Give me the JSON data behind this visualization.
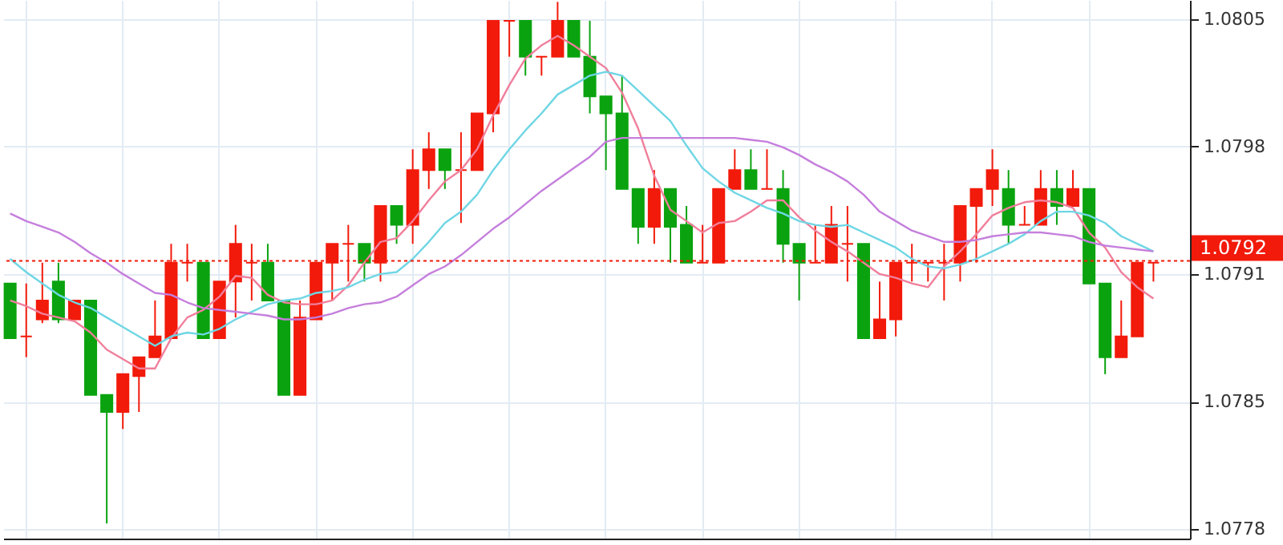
{
  "chart_data": {
    "type": "candlestick",
    "categories": [
      null,
      null,
      null,
      null,
      null,
      null,
      null,
      null,
      null,
      null,
      null,
      null,
      null,
      null,
      null,
      null,
      null,
      null,
      null,
      null,
      null,
      null,
      null,
      null,
      null,
      null,
      null,
      null,
      null,
      null,
      null,
      null,
      null,
      null,
      null,
      null,
      null,
      null,
      null,
      null,
      null,
      null,
      null,
      null,
      null,
      null,
      null,
      null,
      null,
      null,
      null,
      null,
      null,
      null,
      null,
      null,
      null,
      null,
      null,
      null,
      null,
      null,
      null,
      null,
      null,
      null,
      null,
      null,
      null,
      null,
      null,
      null
    ],
    "ohlc": [
      [
        1.07908,
        1.07908,
        1.07879,
        1.07879
      ],
      [
        1.0788,
        1.07908,
        1.07869,
        1.0788
      ],
      [
        1.07889,
        1.07919,
        1.07887,
        1.07899
      ],
      [
        1.07909,
        1.07919,
        1.07887,
        1.07889
      ],
      [
        1.07889,
        1.07899,
        1.07889,
        1.07899
      ],
      [
        1.07899,
        1.07899,
        1.07849,
        1.07849
      ],
      [
        1.07849,
        1.07849,
        1.07781,
        1.0784
      ],
      [
        1.0784,
        1.0786,
        1.07831,
        1.0786
      ],
      [
        1.07859,
        1.07869,
        1.0784,
        1.07869
      ],
      [
        1.07869,
        1.07899,
        1.07869,
        1.0788
      ],
      [
        1.07879,
        1.07929,
        1.07879,
        1.07919
      ],
      [
        1.07919,
        1.07929,
        1.07909,
        1.07919
      ],
      [
        1.07919,
        1.07919,
        1.07879,
        1.07879
      ],
      [
        1.07879,
        1.07909,
        1.07879,
        1.07909
      ],
      [
        1.07909,
        1.07939,
        1.0789,
        1.07929
      ],
      [
        1.07919,
        1.07929,
        1.07899,
        1.07919
      ],
      [
        1.07919,
        1.07929,
        1.07899,
        1.07899
      ],
      [
        1.07899,
        1.07899,
        1.07849,
        1.07849
      ],
      [
        1.07849,
        1.07899,
        1.07849,
        1.0789
      ],
      [
        1.07889,
        1.07919,
        1.07889,
        1.07919
      ],
      [
        1.07919,
        1.07929,
        1.07899,
        1.07929
      ],
      [
        1.07929,
        1.07939,
        1.07909,
        1.07929
      ],
      [
        1.07929,
        1.07929,
        1.07909,
        1.07919
      ],
      [
        1.07919,
        1.07949,
        1.07909,
        1.07949
      ],
      [
        1.07949,
        1.07949,
        1.07929,
        1.07939
      ],
      [
        1.07939,
        1.07979,
        1.07929,
        1.07968
      ],
      [
        1.07968,
        1.07988,
        1.07958,
        1.07979
      ],
      [
        1.07979,
        1.07979,
        1.07958,
        1.07968
      ],
      [
        1.07968,
        1.07988,
        1.0794,
        1.07968
      ],
      [
        1.07968,
        1.07998,
        1.07968,
        1.07998
      ],
      [
        1.07998,
        1.08047,
        1.07988,
        1.08047
      ],
      [
        1.08047,
        1.08047,
        1.08028,
        1.08047
      ],
      [
        1.08047,
        1.08047,
        1.08018,
        1.08028
      ],
      [
        1.08028,
        1.08028,
        1.08018,
        1.08028
      ],
      [
        1.08028,
        1.08057,
        1.08028,
        1.08047
      ],
      [
        1.08047,
        1.08047,
        1.08028,
        1.08028
      ],
      [
        1.08028,
        1.08047,
        1.07998,
        1.08007
      ],
      [
        1.08007,
        1.08007,
        1.07968,
        1.07998
      ],
      [
        1.07998,
        1.08018,
        1.07958,
        1.07958
      ],
      [
        1.07958,
        1.07958,
        1.07929,
        1.07938
      ],
      [
        1.07938,
        1.07968,
        1.07929,
        1.07958
      ],
      [
        1.07958,
        1.07958,
        1.07919,
        1.07938
      ],
      [
        1.07939,
        1.07949,
        1.07919,
        1.07919
      ],
      [
        1.07919,
        1.07939,
        1.07919,
        1.07919
      ],
      [
        1.07919,
        1.07958,
        1.07919,
        1.07958
      ],
      [
        1.07958,
        1.07979,
        1.07958,
        1.07968
      ],
      [
        1.07968,
        1.07979,
        1.07958,
        1.07958
      ],
      [
        1.07958,
        1.07979,
        1.07958,
        1.07958
      ],
      [
        1.07958,
        1.07968,
        1.07919,
        1.07929
      ],
      [
        1.07929,
        1.07929,
        1.07899,
        1.07919
      ],
      [
        1.07919,
        1.07939,
        1.07919,
        1.07919
      ],
      [
        1.07919,
        1.07949,
        1.07919,
        1.07939
      ],
      [
        1.07929,
        1.07949,
        1.07909,
        1.07929
      ],
      [
        1.07929,
        1.07929,
        1.07879,
        1.07879
      ],
      [
        1.07879,
        1.07909,
        1.07879,
        1.07889
      ],
      [
        1.07889,
        1.07919,
        1.0788,
        1.07919
      ],
      [
        1.07919,
        1.07929,
        1.07909,
        1.07919
      ],
      [
        1.07919,
        1.07919,
        1.07909,
        1.07919
      ],
      [
        1.07919,
        1.07929,
        1.07899,
        1.07919
      ],
      [
        1.07919,
        1.07949,
        1.07909,
        1.07949
      ],
      [
        1.07949,
        1.07958,
        1.07919,
        1.07958
      ],
      [
        1.07958,
        1.07979,
        1.07949,
        1.07968
      ],
      [
        1.07958,
        1.07968,
        1.07929,
        1.07939
      ],
      [
        1.07939,
        1.07949,
        1.07939,
        1.07939
      ],
      [
        1.07939,
        1.07968,
        1.07939,
        1.07958
      ],
      [
        1.07958,
        1.07968,
        1.07939,
        1.07949
      ],
      [
        1.07949,
        1.07968,
        1.07949,
        1.07958
      ],
      [
        1.07958,
        1.07958,
        1.07908,
        1.07908
      ],
      [
        1.07908,
        1.07908,
        1.0786,
        1.07869
      ],
      [
        1.07869,
        1.07899,
        1.07869,
        1.0788
      ],
      [
        1.0788,
        1.07919,
        1.0788,
        1.07919
      ],
      [
        1.07919,
        1.07919,
        1.07909,
        1.07919
      ]
    ],
    "colors": [
      "#0aa30f",
      "#f21a0a",
      "#f21a0a",
      "#0aa30f",
      "#f21a0a",
      "#0aa30f",
      "#0aa30f",
      "#f21a0a",
      "#f21a0a",
      "#f21a0a",
      "#f21a0a",
      "#f21a0a",
      "#0aa30f",
      "#f21a0a",
      "#f21a0a",
      "#f21a0a",
      "#0aa30f",
      "#0aa30f",
      "#f21a0a",
      "#f21a0a",
      "#f21a0a",
      "#f21a0a",
      "#0aa30f",
      "#f21a0a",
      "#0aa30f",
      "#f21a0a",
      "#f21a0a",
      "#0aa30f",
      "#f21a0a",
      "#f21a0a",
      "#f21a0a",
      "#f21a0a",
      "#0aa30f",
      "#f21a0a",
      "#f21a0a",
      "#0aa30f",
      "#0aa30f",
      "#0aa30f",
      "#0aa30f",
      "#0aa30f",
      "#f21a0a",
      "#0aa30f",
      "#0aa30f",
      "#f21a0a",
      "#f21a0a",
      "#f21a0a",
      "#0aa30f",
      "#f21a0a",
      "#0aa30f",
      "#0aa30f",
      "#f21a0a",
      "#f21a0a",
      "#f21a0a",
      "#0aa30f",
      "#f21a0a",
      "#f21a0a",
      "#f21a0a",
      "#f21a0a",
      "#f21a0a",
      "#f21a0a",
      "#f21a0a",
      "#f21a0a",
      "#0aa30f",
      "#f21a0a",
      "#f21a0a",
      "#0aa30f",
      "#f21a0a",
      "#0aa30f",
      "#0aa30f",
      "#f21a0a",
      "#f21a0a",
      "#f21a0a"
    ],
    "series": [
      {
        "type": "line",
        "color": "#f07f9b",
        "values": [
          1.07899,
          1.07896,
          1.07892,
          1.0789,
          1.07888,
          1.07882,
          1.07873,
          1.07868,
          1.07863,
          1.07863,
          1.07879,
          1.0789,
          1.07894,
          1.07901,
          1.07912,
          1.07911,
          1.07902,
          1.07898,
          1.07897,
          1.07897,
          1.07899,
          1.07907,
          1.07919,
          1.0793,
          1.07932,
          1.07941,
          1.07952,
          1.07962,
          1.07968,
          1.07979,
          1.07997,
          1.08013,
          1.08027,
          1.08034,
          1.08039,
          1.08034,
          1.08028,
          1.08022,
          1.08009,
          1.0799,
          1.07965,
          1.07947,
          1.07941,
          1.07935,
          1.0794,
          1.07941,
          1.07946,
          1.07952,
          1.07952,
          1.07943,
          1.07936,
          1.0793,
          1.07925,
          1.07919,
          1.07913,
          1.07911,
          1.07908,
          1.07906,
          1.07917,
          1.07925,
          1.07934,
          1.07944,
          1.07948,
          1.07951,
          1.07952,
          1.07951,
          1.07948,
          1.07935,
          1.07927,
          1.07914,
          1.07906,
          1.079
        ]
      },
      {
        "type": "line",
        "color": "#6fd6e4",
        "values": [
          1.07921,
          1.07914,
          1.07908,
          1.07902,
          1.07898,
          1.07895,
          1.0789,
          1.07885,
          1.0788,
          1.07875,
          1.0788,
          1.07882,
          1.07881,
          1.07884,
          1.07889,
          1.07893,
          1.07897,
          1.07899,
          1.079,
          1.07903,
          1.07904,
          1.07906,
          1.0791,
          1.07913,
          1.07914,
          1.07921,
          1.0793,
          1.0794,
          1.07946,
          1.07955,
          1.07968,
          1.07979,
          1.07989,
          1.07998,
          1.08008,
          1.08013,
          1.08018,
          1.0802,
          1.08018,
          1.0801,
          1.08002,
          1.07994,
          1.07981,
          1.07969,
          1.07962,
          1.07956,
          1.07952,
          1.07948,
          1.07945,
          1.07941,
          1.07939,
          1.07938,
          1.07939,
          1.07935,
          1.07931,
          1.07927,
          1.07921,
          1.07917,
          1.07916,
          1.07918,
          1.07921,
          1.07925,
          1.07929,
          1.07934,
          1.07941,
          1.07946,
          1.07946,
          1.07944,
          1.0794,
          1.07933,
          1.07929,
          1.07925
        ]
      },
      {
        "type": "line",
        "color": "#c57fdc",
        "values": [
          1.07945,
          1.07941,
          1.07938,
          1.07935,
          1.0793,
          1.07924,
          1.07919,
          1.07913,
          1.07908,
          1.07903,
          1.07902,
          1.07898,
          1.07895,
          1.07894,
          1.07893,
          1.07892,
          1.07891,
          1.07889,
          1.07889,
          1.0789,
          1.07892,
          1.07895,
          1.07897,
          1.07898,
          1.07901,
          1.07907,
          1.07913,
          1.07917,
          1.07923,
          1.0793,
          1.07937,
          1.07943,
          1.0795,
          1.07957,
          1.07963,
          1.07969,
          1.07975,
          1.07983,
          1.07985,
          1.07985,
          1.07985,
          1.07985,
          1.07985,
          1.07985,
          1.07985,
          1.07985,
          1.07984,
          1.07983,
          1.0798,
          1.07976,
          1.07971,
          1.07967,
          1.07962,
          1.07955,
          1.07946,
          1.07941,
          1.07936,
          1.07933,
          1.0793,
          1.0793,
          1.07931,
          1.07933,
          1.07934,
          1.07935,
          1.07935,
          1.07934,
          1.07933,
          1.0793,
          1.07928,
          1.07927,
          1.07926,
          1.07925
        ]
      }
    ],
    "ylim": [
      1.07773,
      1.08058
    ],
    "yticks": [
      {
        "value": 1.07778,
        "label": "1.0778"
      },
      {
        "value": 1.078455,
        "label": "1.0785"
      },
      {
        "value": 1.07913,
        "label": "1.0791"
      },
      {
        "value": 1.079805,
        "label": "1.0798"
      },
      {
        "value": 1.08048,
        "label": "1.0805"
      }
    ],
    "ref_lines": [
      {
        "axis": "y",
        "value": 1.0792,
        "label": "1.0792",
        "color": "#f21a0a",
        "line_style": "dotted"
      }
    ],
    "grid": true,
    "tick_labels": "y"
  }
}
